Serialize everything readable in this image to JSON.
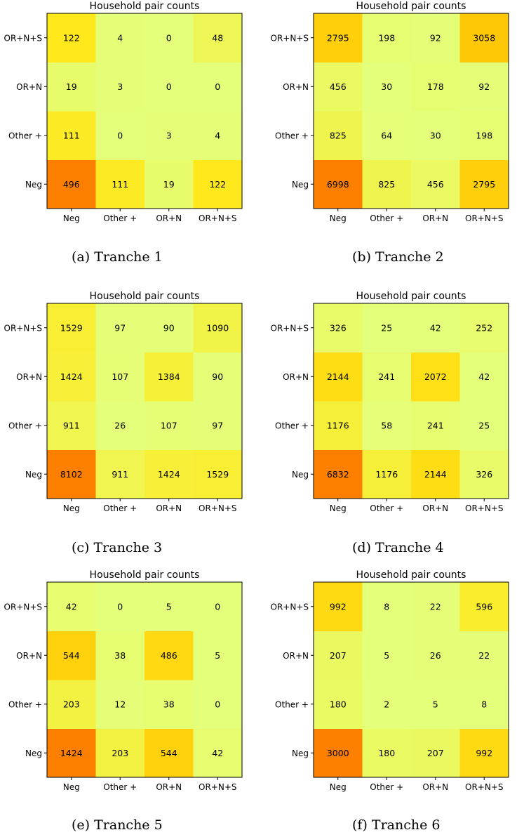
{
  "chart_data": [
    {
      "type": "heatmap",
      "title": "Household pair counts",
      "caption": "(a) Tranche 1",
      "x_categories": [
        "Neg",
        "Other +",
        "OR+N",
        "OR+N+S"
      ],
      "y_categories": [
        "Neg",
        "Other +",
        "OR+N",
        "OR+N+S"
      ],
      "values": [
        [
          496,
          111,
          19,
          122
        ],
        [
          111,
          0,
          3,
          4
        ],
        [
          19,
          3,
          0,
          0
        ],
        [
          122,
          4,
          0,
          48
        ]
      ],
      "colormap": "Wistia"
    },
    {
      "type": "heatmap",
      "title": "Household pair counts",
      "caption": "(b) Tranche 2",
      "x_categories": [
        "Neg",
        "Other +",
        "OR+N",
        "OR+N+S"
      ],
      "y_categories": [
        "Neg",
        "Other +",
        "OR+N",
        "OR+N+S"
      ],
      "values": [
        [
          6998,
          825,
          456,
          2795
        ],
        [
          825,
          64,
          30,
          198
        ],
        [
          456,
          30,
          178,
          92
        ],
        [
          2795,
          198,
          92,
          3058
        ]
      ],
      "colormap": "Wistia"
    },
    {
      "type": "heatmap",
      "title": "Household pair counts",
      "caption": "(c) Tranche 3",
      "x_categories": [
        "Neg",
        "Other +",
        "OR+N",
        "OR+N+S"
      ],
      "y_categories": [
        "Neg",
        "Other +",
        "OR+N",
        "OR+N+S"
      ],
      "values": [
        [
          8102,
          911,
          1424,
          1529
        ],
        [
          911,
          26,
          107,
          97
        ],
        [
          1424,
          107,
          1384,
          90
        ],
        [
          1529,
          97,
          90,
          1090
        ]
      ],
      "colormap": "Wistia"
    },
    {
      "type": "heatmap",
      "title": "Household pair counts",
      "caption": "(d) Tranche 4",
      "x_categories": [
        "Neg",
        "Other +",
        "OR+N",
        "OR+N+S"
      ],
      "y_categories": [
        "Neg",
        "Other +",
        "OR+N",
        "OR+N+S"
      ],
      "values": [
        [
          6832,
          1176,
          2144,
          326
        ],
        [
          1176,
          58,
          241,
          25
        ],
        [
          2144,
          241,
          2072,
          42
        ],
        [
          326,
          25,
          42,
          252
        ]
      ],
      "colormap": "Wistia"
    },
    {
      "type": "heatmap",
      "title": "Household pair counts",
      "caption": "(e) Tranche 5",
      "x_categories": [
        "Neg",
        "Other +",
        "OR+N",
        "OR+N+S"
      ],
      "y_categories": [
        "Neg",
        "Other +",
        "OR+N",
        "OR+N+S"
      ],
      "values": [
        [
          1424,
          203,
          544,
          42
        ],
        [
          203,
          12,
          38,
          0
        ],
        [
          544,
          38,
          486,
          5
        ],
        [
          42,
          0,
          5,
          0
        ]
      ],
      "colormap": "Wistia"
    },
    {
      "type": "heatmap",
      "title": "Household pair counts",
      "caption": "(f) Tranche 6",
      "x_categories": [
        "Neg",
        "Other +",
        "OR+N",
        "OR+N+S"
      ],
      "y_categories": [
        "Neg",
        "Other +",
        "OR+N",
        "OR+N+S"
      ],
      "values": [
        [
          3000,
          180,
          207,
          992
        ],
        [
          180,
          2,
          5,
          8
        ],
        [
          207,
          5,
          26,
          22
        ],
        [
          992,
          8,
          22,
          596
        ]
      ],
      "colormap": "Wistia"
    }
  ]
}
